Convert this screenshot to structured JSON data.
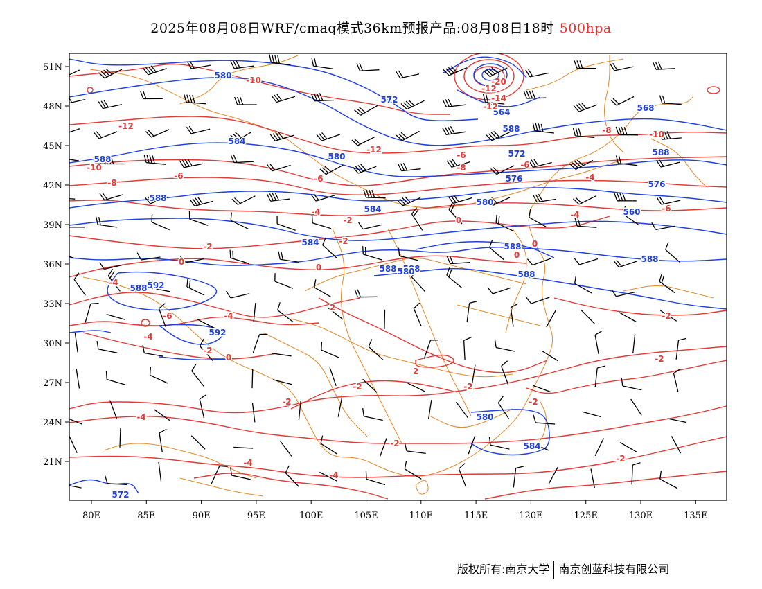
{
  "title": {
    "text": "2025年08月08日WRF/cmaq模式36km预报产品:08月08日18时",
    "level": "500hpa"
  },
  "colors": {
    "height_contour": "#1f3fe0",
    "temperature_contour": "#e23a36",
    "boundary": "#e08a2c",
    "wind_barb": "#000000",
    "level_text": "#e8302c"
  },
  "axes": {
    "lon_ticks": [
      "80E",
      "85E",
      "90E",
      "95E",
      "100E",
      "105E",
      "110E",
      "115E",
      "120E",
      "125E",
      "130E",
      "135E"
    ],
    "lat_ticks": [
      "51N",
      "48N",
      "45N",
      "42N",
      "39N",
      "36N",
      "33N",
      "30N",
      "27N",
      "24N",
      "21N"
    ]
  },
  "contour_labels": {
    "height": [
      "580",
      "572",
      "564",
      "588",
      "584",
      "580",
      "572",
      "588",
      "576",
      "576",
      "580",
      "568",
      "584",
      "560",
      "584",
      "588",
      "588",
      "588",
      "588",
      "588",
      "592",
      "592",
      "580",
      "584",
      "588",
      "588",
      "572",
      "580",
      "588"
    ],
    "temperature": [
      "-10",
      "-12",
      "-10",
      "-8",
      "-6",
      "-12",
      "-6",
      "-20",
      "-12",
      "-14",
      "-12",
      "-8",
      "-6",
      "-4",
      "-10",
      "-8",
      "-6",
      "-4",
      "-2",
      "0",
      "-6",
      "-2",
      "0",
      "-4",
      "0",
      "2",
      "-4",
      "-6",
      "-2",
      "-4",
      "-2",
      "0",
      "2",
      "-2",
      "-2",
      "-2",
      "-2",
      "0",
      "0",
      "-2",
      "-2",
      "-2",
      "-4",
      "-4",
      "-4",
      "-2",
      "-4"
    ]
  },
  "footer": {
    "copyright": "版权所有:南京大学",
    "company": "南京创蓝科技有限公司"
  }
}
